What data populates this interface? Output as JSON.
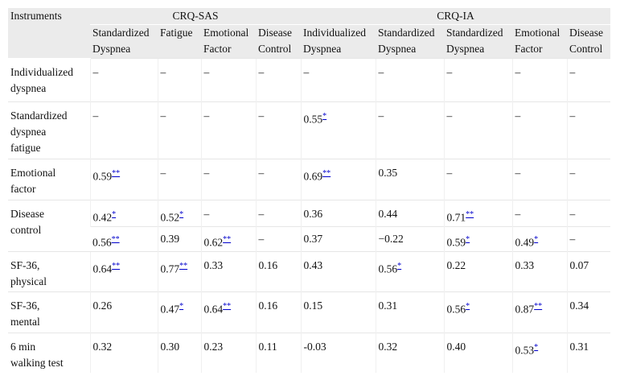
{
  "table": {
    "header": {
      "first": "Instruments",
      "groups": [
        "CRQ-SAS",
        "CRQ-IA"
      ],
      "columns": [
        [
          "Standardized",
          "Dyspnea"
        ],
        [
          "Fatigue"
        ],
        [
          "Emotional",
          "Factor"
        ],
        [
          "Disease",
          "Control"
        ],
        [
          "Individualized",
          "Dyspnea"
        ],
        [
          "Standardized",
          "Dyspnea"
        ],
        [
          "Standardized",
          "Dyspnea"
        ],
        [
          "Emotional",
          "Factor"
        ],
        [
          "Disease",
          "Control"
        ]
      ]
    },
    "rows": [
      {
        "label": [
          "Individualized",
          "dyspnea"
        ],
        "lines": [
          [
            {
              "text": "–"
            },
            {
              "text": "–"
            },
            {
              "text": "–"
            },
            {
              "text": "–"
            },
            {
              "text": "–"
            },
            {
              "text": "–"
            },
            {
              "text": "–"
            },
            {
              "text": "–"
            },
            {
              "text": "–"
            }
          ]
        ]
      },
      {
        "label": [
          "Standardized",
          "dyspnea",
          "fatigue"
        ],
        "lines": [
          [
            {
              "text": "–"
            },
            {
              "text": "–"
            },
            {
              "text": "–"
            },
            {
              "text": "–"
            },
            {
              "text": "0.55",
              "sig": "*"
            },
            {
              "text": "–"
            },
            {
              "text": "–"
            },
            {
              "text": "–"
            },
            {
              "text": "–"
            }
          ]
        ]
      },
      {
        "label": [
          "Emotional",
          "factor"
        ],
        "lines": [
          [
            {
              "text": "0.59",
              "sig": "**"
            },
            {
              "text": "–"
            },
            {
              "text": "–"
            },
            {
              "text": "–"
            },
            {
              "text": "0.69",
              "sig": "**"
            },
            {
              "text": "0.35"
            },
            {
              "text": "–"
            },
            {
              "text": "–"
            },
            {
              "text": "–"
            }
          ]
        ]
      },
      {
        "label": [
          "Disease",
          "control"
        ],
        "lines": [
          [
            {
              "text": "0.42",
              "sig": "*"
            },
            {
              "text": "0.52",
              "sig": "*"
            },
            {
              "text": "–"
            },
            {
              "text": "–"
            },
            {
              "text": "0.36"
            },
            {
              "text": "0.44"
            },
            {
              "text": "0.71",
              "sig": "**"
            },
            {
              "text": "–"
            },
            {
              "text": "–"
            }
          ],
          [
            {
              "text": "0.56",
              "sig": "**"
            },
            {
              "text": "0.39"
            },
            {
              "text": "0.62",
              "sig": "**"
            },
            {
              "text": "–"
            },
            {
              "text": "0.37"
            },
            {
              "text": "−0.22"
            },
            {
              "text": "0.59",
              "sig": "*"
            },
            {
              "text": "0.49",
              "sig": "*"
            },
            {
              "text": "–"
            }
          ]
        ]
      },
      {
        "label": [
          "SF-36,",
          "physical"
        ],
        "lines": [
          [
            {
              "text": "0.64",
              "sig": "**"
            },
            {
              "text": "0.77",
              "sig": "**"
            },
            {
              "text": "0.33"
            },
            {
              "text": "0.16"
            },
            {
              "text": "0.43"
            },
            {
              "text": "0.56",
              "sig": "*"
            },
            {
              "text": "0.22"
            },
            {
              "text": "0.33"
            },
            {
              "text": "0.07"
            }
          ]
        ]
      },
      {
        "label": [
          "SF-36,",
          "mental"
        ],
        "lines": [
          [
            {
              "text": "0.26"
            },
            {
              "text": "0.47",
              "sig": "*"
            },
            {
              "text": "0.64",
              "sig": "**"
            },
            {
              "text": "0.16"
            },
            {
              "text": "0.15"
            },
            {
              "text": "0.31"
            },
            {
              "text": "0.56",
              "sig": "*"
            },
            {
              "text": "0.87",
              "sig": "**"
            },
            {
              "text": "0.34"
            }
          ]
        ]
      },
      {
        "label": [
          "6 min",
          "walking test"
        ],
        "lines": [
          [
            {
              "text": "0.32"
            },
            {
              "text": "0.30"
            },
            {
              "text": "0.23"
            },
            {
              "text": "0.11"
            },
            {
              "text": "-0.03"
            },
            {
              "text": "0.32"
            },
            {
              "text": "0.40"
            },
            {
              "text": "0.53",
              "sig": "*"
            },
            {
              "text": "0.31"
            }
          ]
        ]
      }
    ]
  }
}
